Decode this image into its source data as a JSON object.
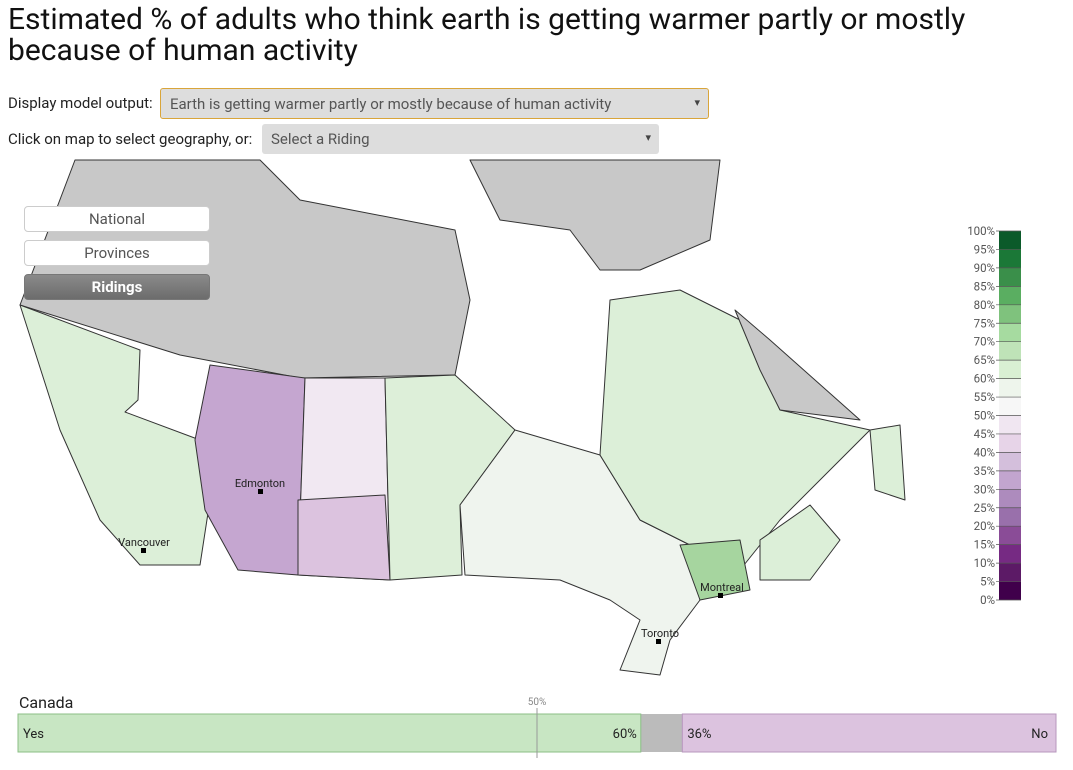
{
  "header": {
    "title": "Estimated % of adults who think earth is getting warmer partly or mostly because of human activity"
  },
  "controls": {
    "model_label": "Display model output:",
    "model_value": "Earth is getting warmer partly or mostly because of human activity",
    "geo_label": "Click on map to select geography, or:",
    "geo_value": "Select a Riding"
  },
  "buttons": [
    {
      "label": "National",
      "active": false
    },
    {
      "label": "Provinces",
      "active": false
    },
    {
      "label": "Ridings",
      "active": true
    }
  ],
  "map": {
    "cities": [
      "Edmonton",
      "Vancouver",
      "Montreal",
      "Toronto"
    ]
  },
  "legend": {
    "lim": [
      0,
      100
    ],
    "ticks": [
      {
        "value": 0,
        "label": "0%"
      },
      {
        "value": 5,
        "label": "5%"
      },
      {
        "value": 10,
        "label": "10%"
      },
      {
        "value": 15,
        "label": "15%"
      },
      {
        "value": 20,
        "label": "20%"
      },
      {
        "value": 25,
        "label": "25%"
      },
      {
        "value": 30,
        "label": "30%"
      },
      {
        "value": 35,
        "label": "35%"
      },
      {
        "value": 40,
        "label": "40%"
      },
      {
        "value": 45,
        "label": "45%"
      },
      {
        "value": 50,
        "label": "50%"
      },
      {
        "value": 55,
        "label": "55%"
      },
      {
        "value": 60,
        "label": "60%"
      },
      {
        "value": 65,
        "label": "65%"
      },
      {
        "value": 70,
        "label": "70%"
      },
      {
        "value": 75,
        "label": "75%"
      },
      {
        "value": 80,
        "label": "80%"
      },
      {
        "value": 85,
        "label": "85%"
      },
      {
        "value": 90,
        "label": "90%"
      },
      {
        "value": 95,
        "label": "95%"
      },
      {
        "value": 100,
        "label": "100%"
      }
    ],
    "colors": [
      "#40004b",
      "#5c1a66",
      "#762a83",
      "#8a4c97",
      "#9970ab",
      "#ad8bbd",
      "#c2a5cf",
      "#d4bfdc",
      "#e7d4e8",
      "#f0e6f1",
      "#f7f7f7",
      "#eef5ec",
      "#d9f0d3",
      "#bfe3b8",
      "#a6dba0",
      "#7fc27d",
      "#5aae61",
      "#3a8f4a",
      "#1b7837",
      "#0b5a2a"
    ]
  },
  "summary": {
    "region": "Canada",
    "lim": [
      0,
      100
    ],
    "midpoint": {
      "value": 50,
      "label": "50%"
    },
    "series": [
      {
        "name": "Yes",
        "value": 60,
        "value_label": "60%",
        "color": "#c8e6c3"
      },
      {
        "name": "No",
        "value": 36,
        "value_label": "36%",
        "color": "#dcc3df"
      }
    ]
  }
}
